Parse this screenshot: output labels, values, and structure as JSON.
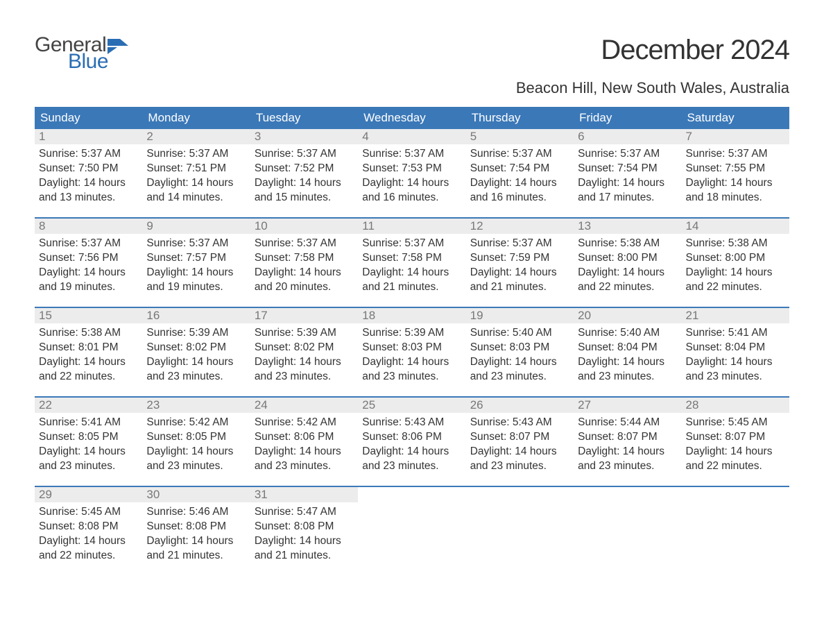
{
  "logo": {
    "word1": "General",
    "word2": "Blue",
    "icon_color": "#2a6db3"
  },
  "title": "December 2024",
  "location": "Beacon Hill, New South Wales, Australia",
  "colors": {
    "header_bg": "#3b78b8",
    "header_text": "#ffffff",
    "daynum_bg": "#ececec",
    "daynum_text": "#777777",
    "body_text": "#333333",
    "sep_line": "#3b78b8",
    "page_bg": "#ffffff"
  },
  "typography": {
    "title_fontsize": 40,
    "location_fontsize": 22,
    "header_fontsize": 17,
    "daynum_fontsize": 17,
    "body_fontsize": 15.5
  },
  "weekdays": [
    "Sunday",
    "Monday",
    "Tuesday",
    "Wednesday",
    "Thursday",
    "Friday",
    "Saturday"
  ],
  "labels": {
    "sunrise": "Sunrise:",
    "sunset": "Sunset:",
    "daylight": "Daylight:",
    "hours": "hours",
    "and": "and",
    "minutes": "minutes."
  },
  "weeks": [
    [
      {
        "n": "1",
        "sunrise": "5:37 AM",
        "sunset": "7:50 PM",
        "dl_h": "14",
        "dl_m": "13"
      },
      {
        "n": "2",
        "sunrise": "5:37 AM",
        "sunset": "7:51 PM",
        "dl_h": "14",
        "dl_m": "14"
      },
      {
        "n": "3",
        "sunrise": "5:37 AM",
        "sunset": "7:52 PM",
        "dl_h": "14",
        "dl_m": "15"
      },
      {
        "n": "4",
        "sunrise": "5:37 AM",
        "sunset": "7:53 PM",
        "dl_h": "14",
        "dl_m": "16"
      },
      {
        "n": "5",
        "sunrise": "5:37 AM",
        "sunset": "7:54 PM",
        "dl_h": "14",
        "dl_m": "16"
      },
      {
        "n": "6",
        "sunrise": "5:37 AM",
        "sunset": "7:54 PM",
        "dl_h": "14",
        "dl_m": "17"
      },
      {
        "n": "7",
        "sunrise": "5:37 AM",
        "sunset": "7:55 PM",
        "dl_h": "14",
        "dl_m": "18"
      }
    ],
    [
      {
        "n": "8",
        "sunrise": "5:37 AM",
        "sunset": "7:56 PM",
        "dl_h": "14",
        "dl_m": "19"
      },
      {
        "n": "9",
        "sunrise": "5:37 AM",
        "sunset": "7:57 PM",
        "dl_h": "14",
        "dl_m": "19"
      },
      {
        "n": "10",
        "sunrise": "5:37 AM",
        "sunset": "7:58 PM",
        "dl_h": "14",
        "dl_m": "20"
      },
      {
        "n": "11",
        "sunrise": "5:37 AM",
        "sunset": "7:58 PM",
        "dl_h": "14",
        "dl_m": "21"
      },
      {
        "n": "12",
        "sunrise": "5:37 AM",
        "sunset": "7:59 PM",
        "dl_h": "14",
        "dl_m": "21"
      },
      {
        "n": "13",
        "sunrise": "5:38 AM",
        "sunset": "8:00 PM",
        "dl_h": "14",
        "dl_m": "22"
      },
      {
        "n": "14",
        "sunrise": "5:38 AM",
        "sunset": "8:00 PM",
        "dl_h": "14",
        "dl_m": "22"
      }
    ],
    [
      {
        "n": "15",
        "sunrise": "5:38 AM",
        "sunset": "8:01 PM",
        "dl_h": "14",
        "dl_m": "22"
      },
      {
        "n": "16",
        "sunrise": "5:39 AM",
        "sunset": "8:02 PM",
        "dl_h": "14",
        "dl_m": "23"
      },
      {
        "n": "17",
        "sunrise": "5:39 AM",
        "sunset": "8:02 PM",
        "dl_h": "14",
        "dl_m": "23"
      },
      {
        "n": "18",
        "sunrise": "5:39 AM",
        "sunset": "8:03 PM",
        "dl_h": "14",
        "dl_m": "23"
      },
      {
        "n": "19",
        "sunrise": "5:40 AM",
        "sunset": "8:03 PM",
        "dl_h": "14",
        "dl_m": "23"
      },
      {
        "n": "20",
        "sunrise": "5:40 AM",
        "sunset": "8:04 PM",
        "dl_h": "14",
        "dl_m": "23"
      },
      {
        "n": "21",
        "sunrise": "5:41 AM",
        "sunset": "8:04 PM",
        "dl_h": "14",
        "dl_m": "23"
      }
    ],
    [
      {
        "n": "22",
        "sunrise": "5:41 AM",
        "sunset": "8:05 PM",
        "dl_h": "14",
        "dl_m": "23"
      },
      {
        "n": "23",
        "sunrise": "5:42 AM",
        "sunset": "8:05 PM",
        "dl_h": "14",
        "dl_m": "23"
      },
      {
        "n": "24",
        "sunrise": "5:42 AM",
        "sunset": "8:06 PM",
        "dl_h": "14",
        "dl_m": "23"
      },
      {
        "n": "25",
        "sunrise": "5:43 AM",
        "sunset": "8:06 PM",
        "dl_h": "14",
        "dl_m": "23"
      },
      {
        "n": "26",
        "sunrise": "5:43 AM",
        "sunset": "8:07 PM",
        "dl_h": "14",
        "dl_m": "23"
      },
      {
        "n": "27",
        "sunrise": "5:44 AM",
        "sunset": "8:07 PM",
        "dl_h": "14",
        "dl_m": "23"
      },
      {
        "n": "28",
        "sunrise": "5:45 AM",
        "sunset": "8:07 PM",
        "dl_h": "14",
        "dl_m": "22"
      }
    ],
    [
      {
        "n": "29",
        "sunrise": "5:45 AM",
        "sunset": "8:08 PM",
        "dl_h": "14",
        "dl_m": "22"
      },
      {
        "n": "30",
        "sunrise": "5:46 AM",
        "sunset": "8:08 PM",
        "dl_h": "14",
        "dl_m": "21"
      },
      {
        "n": "31",
        "sunrise": "5:47 AM",
        "sunset": "8:08 PM",
        "dl_h": "14",
        "dl_m": "21"
      },
      null,
      null,
      null,
      null
    ]
  ]
}
